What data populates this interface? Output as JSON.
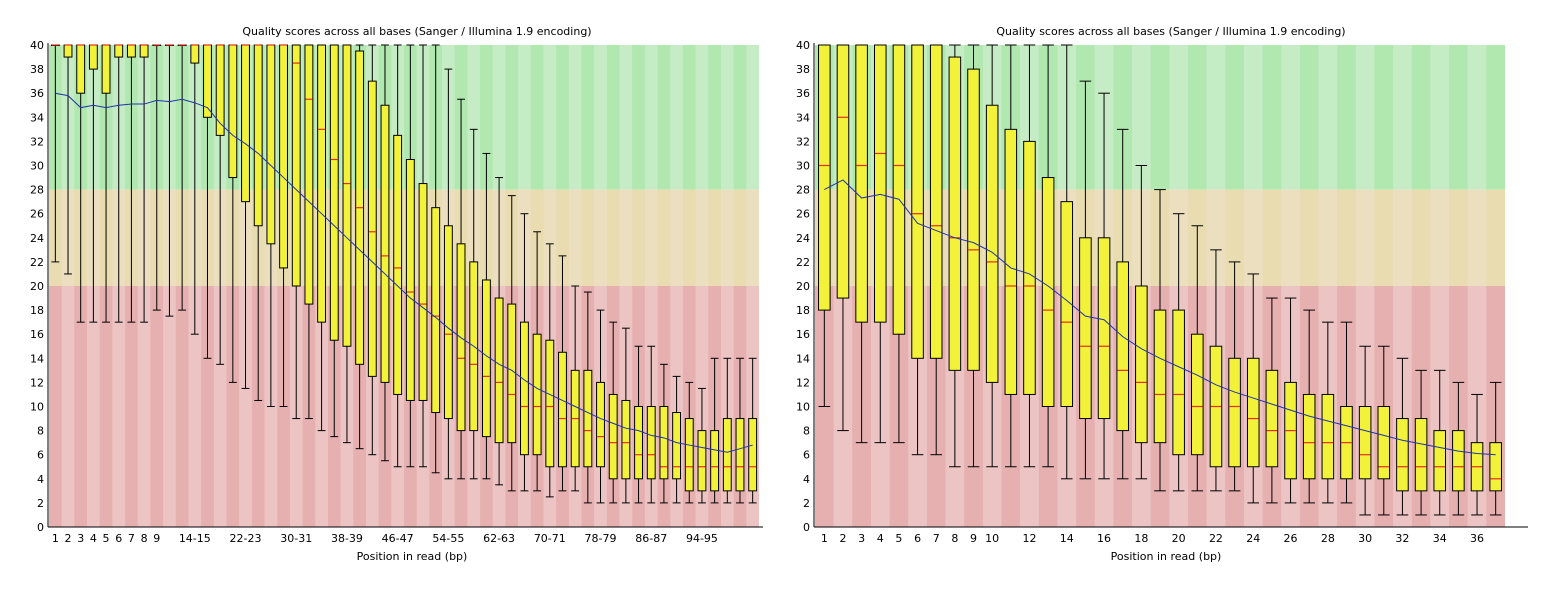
{
  "chart_data": [
    {
      "type": "boxplot",
      "title": "Quality scores across all bases (Sanger / Illumina 1.9 encoding)",
      "xlabel": "Position in read (bp)",
      "ylabel": "",
      "ylim": [
        0,
        40
      ],
      "y_ticks": [
        0,
        2,
        4,
        6,
        8,
        10,
        12,
        14,
        16,
        18,
        20,
        22,
        24,
        26,
        28,
        30,
        32,
        34,
        36,
        38,
        40
      ],
      "background_bands": {
        "poor": [
          0,
          20
        ],
        "reasonable": [
          20,
          28
        ],
        "good": [
          28,
          40
        ]
      },
      "categories": [
        "1",
        "2",
        "3",
        "4",
        "5",
        "6",
        "7",
        "8",
        "9",
        "10-11",
        "12-13",
        "14-15",
        "16-17",
        "18-19",
        "20-21",
        "22-23",
        "24-25",
        "26-27",
        "28-29",
        "30-31",
        "32-33",
        "34-35",
        "36-37",
        "38-39",
        "40-41",
        "42-43",
        "44-45",
        "46-47",
        "48-49",
        "50-51",
        "52-53",
        "54-55",
        "56-57",
        "58-59",
        "60-61",
        "62-63",
        "64-65",
        "66-67",
        "68-69",
        "70-71",
        "72-73",
        "74-75",
        "76-77",
        "78-79",
        "80-81",
        "82-83",
        "84-85",
        "86-87",
        "88-89",
        "90-91",
        "92-93",
        "94-95",
        "96-97",
        "98-99",
        "100-101",
        "102"
      ],
      "x_tick_labels": [
        {
          "index": 0,
          "label": "1"
        },
        {
          "index": 1,
          "label": "2"
        },
        {
          "index": 2,
          "label": "3"
        },
        {
          "index": 3,
          "label": "4"
        },
        {
          "index": 4,
          "label": "5"
        },
        {
          "index": 5,
          "label": "6"
        },
        {
          "index": 6,
          "label": "7"
        },
        {
          "index": 7,
          "label": "8"
        },
        {
          "index": 8,
          "label": "9"
        },
        {
          "index": 11,
          "label": "14-15"
        },
        {
          "index": 15,
          "label": "22-23"
        },
        {
          "index": 19,
          "label": "30-31"
        },
        {
          "index": 23,
          "label": "38-39"
        },
        {
          "index": 27,
          "label": "46-47"
        },
        {
          "index": 31,
          "label": "54-55"
        },
        {
          "index": 35,
          "label": "62-63"
        },
        {
          "index": 39,
          "label": "70-71"
        },
        {
          "index": 43,
          "label": "78-79"
        },
        {
          "index": 47,
          "label": "86-87"
        },
        {
          "index": 51,
          "label": "94-95"
        }
      ],
      "boxes": {
        "q1": [
          40,
          39,
          36,
          38,
          36,
          39,
          39,
          39,
          40,
          40,
          40,
          38.5,
          34,
          32.5,
          29,
          27,
          25,
          23.5,
          21.5,
          20,
          18.5,
          17,
          15.5,
          15,
          13.5,
          12.5,
          12,
          11,
          10.5,
          10.5,
          9.5,
          9,
          8,
          8,
          7.5,
          7,
          7,
          6,
          6,
          5,
          5,
          5,
          5,
          5,
          4,
          4,
          4,
          4,
          4,
          4,
          3,
          3,
          3,
          3,
          3,
          3
        ],
        "median": [
          40,
          40,
          40,
          40,
          40,
          40,
          40,
          40,
          40,
          40,
          40,
          40,
          40,
          40,
          40,
          40,
          40,
          40,
          40,
          38.5,
          35.5,
          33,
          30.5,
          28.5,
          26.5,
          24.5,
          22.5,
          21.5,
          19.5,
          18.5,
          17.5,
          16,
          14,
          13.5,
          12.5,
          12,
          11,
          10,
          10,
          10,
          9,
          9,
          8,
          7.5,
          7,
          7,
          6,
          6,
          5,
          5,
          5,
          5,
          5,
          5,
          5,
          5
        ],
        "q3": [
          40,
          40,
          40,
          40,
          40,
          40,
          40,
          40,
          40,
          40,
          40,
          40,
          40,
          40,
          40,
          40,
          40,
          40,
          40,
          40,
          40,
          40,
          40,
          40,
          39.5,
          37,
          35,
          32.5,
          30.5,
          28.5,
          26.5,
          25,
          23.5,
          22,
          20.5,
          19,
          18.5,
          17,
          16,
          15.5,
          14.5,
          13,
          13,
          12,
          11,
          10.5,
          10,
          10,
          10,
          9.5,
          9,
          8,
          8,
          9,
          9,
          9
        ],
        "lower": [
          22,
          21,
          17,
          17,
          17,
          17,
          17,
          17,
          18,
          17.5,
          18,
          16,
          14,
          13.5,
          12,
          11.5,
          10.5,
          10,
          10,
          9,
          9,
          8,
          7.5,
          7,
          6.5,
          6,
          5.5,
          5,
          5,
          5,
          4.5,
          4,
          4,
          4,
          4,
          3.5,
          3,
          3,
          3,
          2.5,
          3,
          3,
          2,
          2,
          2,
          2,
          2,
          2,
          2,
          2,
          2,
          2,
          2,
          2,
          2,
          2
        ],
        "upper": [
          40,
          40,
          40,
          40,
          40,
          40,
          40,
          40,
          40,
          40,
          40,
          40,
          40,
          40,
          40,
          40,
          40,
          40,
          40,
          40,
          40,
          40,
          40,
          40,
          40,
          40,
          40,
          40,
          40,
          40,
          40,
          38,
          35.5,
          33,
          31,
          29,
          27.5,
          26,
          24.5,
          23.5,
          22.5,
          20,
          19.5,
          18,
          17,
          16.5,
          15,
          15,
          13.5,
          12.5,
          12,
          11.5,
          14,
          14,
          14,
          14
        ]
      },
      "mean": [
        36,
        35.8,
        34.8,
        35,
        34.8,
        35,
        35.1,
        35.1,
        35.4,
        35.3,
        35.5,
        35.2,
        34.8,
        33.5,
        32.5,
        31.8,
        31,
        30,
        29,
        28,
        27,
        26,
        25,
        24,
        23,
        22,
        21,
        20,
        19,
        18.2,
        17.4,
        16.5,
        15.7,
        15,
        14.2,
        13.5,
        13,
        12.2,
        11.5,
        11,
        10.5,
        10,
        9.5,
        9,
        8.6,
        8.2,
        8,
        7.6,
        7.4,
        7,
        6.8,
        6.6,
        6.4,
        6.2,
        6.5,
        6.8
      ]
    },
    {
      "type": "boxplot",
      "title": "Quality scores across all bases (Sanger / Illumina 1.9 encoding)",
      "xlabel": "Position in read (bp)",
      "ylabel": "",
      "ylim": [
        0,
        40
      ],
      "y_ticks": [
        0,
        2,
        4,
        6,
        8,
        10,
        12,
        14,
        16,
        18,
        20,
        22,
        24,
        26,
        28,
        30,
        32,
        34,
        36,
        38,
        40
      ],
      "background_bands": {
        "poor": [
          0,
          20
        ],
        "reasonable": [
          20,
          28
        ],
        "good": [
          28,
          40
        ]
      },
      "categories": [
        "1",
        "2",
        "3",
        "4",
        "5",
        "6",
        "7",
        "8",
        "9",
        "10",
        "11",
        "12",
        "13",
        "14",
        "15",
        "16",
        "17",
        "18",
        "19",
        "20",
        "21",
        "22",
        "23",
        "24",
        "25",
        "26",
        "27",
        "28",
        "29",
        "30",
        "31",
        "32",
        "33",
        "34",
        "35",
        "36",
        "37"
      ],
      "x_tick_labels": [
        {
          "index": 0,
          "label": "1"
        },
        {
          "index": 1,
          "label": "2"
        },
        {
          "index": 2,
          "label": "3"
        },
        {
          "index": 3,
          "label": "4"
        },
        {
          "index": 4,
          "label": "5"
        },
        {
          "index": 5,
          "label": "6"
        },
        {
          "index": 6,
          "label": "7"
        },
        {
          "index": 7,
          "label": "8"
        },
        {
          "index": 8,
          "label": "9"
        },
        {
          "index": 9,
          "label": "10"
        },
        {
          "index": 11,
          "label": "12"
        },
        {
          "index": 13,
          "label": "14"
        },
        {
          "index": 15,
          "label": "16"
        },
        {
          "index": 17,
          "label": "18"
        },
        {
          "index": 19,
          "label": "20"
        },
        {
          "index": 21,
          "label": "22"
        },
        {
          "index": 23,
          "label": "24"
        },
        {
          "index": 25,
          "label": "26"
        },
        {
          "index": 27,
          "label": "28"
        },
        {
          "index": 29,
          "label": "30"
        },
        {
          "index": 31,
          "label": "32"
        },
        {
          "index": 33,
          "label": "34"
        },
        {
          "index": 35,
          "label": "36"
        }
      ],
      "boxes": {
        "q1": [
          18,
          19,
          17,
          17,
          16,
          14,
          14,
          13,
          13,
          12,
          11,
          11,
          10,
          10,
          9,
          9,
          8,
          7,
          7,
          6,
          6,
          5,
          5,
          5,
          5,
          4,
          4,
          4,
          4,
          4,
          4,
          3,
          3,
          3,
          3,
          3,
          3
        ],
        "median": [
          30,
          34,
          30,
          31,
          30,
          26,
          25,
          24,
          23,
          22,
          20,
          20,
          18,
          17,
          15,
          15,
          13,
          12,
          11,
          11,
          10,
          10,
          10,
          9,
          8,
          8,
          7,
          7,
          7,
          6,
          5,
          5,
          5,
          5,
          5,
          5,
          4
        ],
        "q3": [
          40,
          40,
          40,
          40,
          40,
          40,
          40,
          39,
          38,
          35,
          33,
          32,
          29,
          27,
          24,
          24,
          22,
          20,
          18,
          18,
          16,
          15,
          14,
          14,
          13,
          12,
          11,
          11,
          10,
          10,
          10,
          9,
          9,
          8,
          8,
          7,
          7
        ],
        "lower": [
          10,
          8,
          7,
          7,
          7,
          6,
          6,
          5,
          5,
          5,
          5,
          5,
          5,
          4,
          4,
          4,
          4,
          4,
          3,
          3,
          3,
          3,
          3,
          2,
          2,
          2,
          2,
          2,
          2,
          1,
          1,
          1,
          1,
          1,
          1,
          1,
          1
        ],
        "upper": [
          40,
          40,
          40,
          40,
          40,
          40,
          40,
          40,
          40,
          40,
          40,
          40,
          40,
          40,
          37,
          36,
          33,
          30,
          28,
          26,
          25,
          23,
          22,
          21,
          19,
          19,
          18,
          17,
          17,
          15,
          15,
          14,
          13,
          13,
          12,
          11,
          12
        ]
      },
      "mean": [
        28,
        28.8,
        27.3,
        27.6,
        27.2,
        25.2,
        24.6,
        24,
        23.6,
        22.8,
        21.5,
        21,
        20,
        18.8,
        17.5,
        17.2,
        15.8,
        14.8,
        14,
        13.3,
        12.6,
        11.8,
        11.2,
        10.7,
        10.2,
        9.7,
        9.2,
        8.8,
        8.4,
        8,
        7.6,
        7.2,
        6.9,
        6.6,
        6.3,
        6.1,
        6
      ]
    }
  ]
}
